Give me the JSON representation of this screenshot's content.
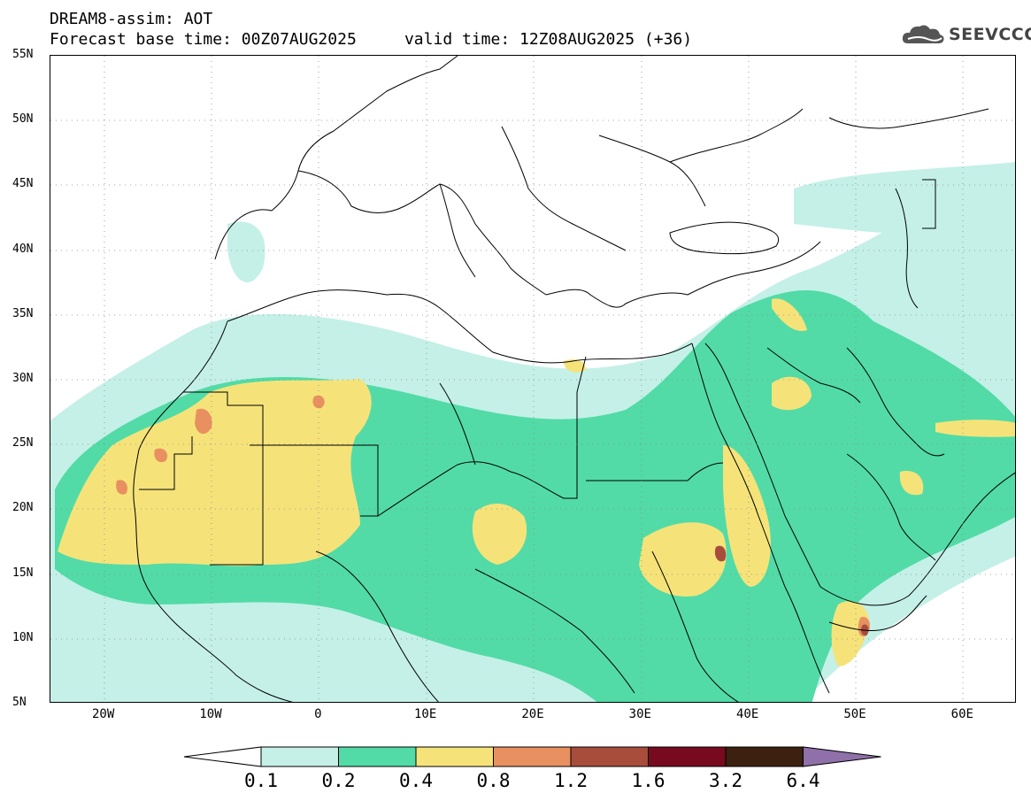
{
  "header": {
    "line1": "DREAM8-assim: AOT",
    "line2": "Forecast base time: 00Z07AUG2025     valid time: 12Z08AUG2025 (+36)"
  },
  "logo": {
    "text": "SEEVCCC",
    "icon": "cloud-icon"
  },
  "map": {
    "lon_range": [
      -25,
      65
    ],
    "lat_range": [
      5,
      55
    ],
    "lat_ticks": [
      {
        "value": 55,
        "label": "55N"
      },
      {
        "value": 50,
        "label": "50N"
      },
      {
        "value": 45,
        "label": "45N"
      },
      {
        "value": 40,
        "label": "40N"
      },
      {
        "value": 35,
        "label": "35N"
      },
      {
        "value": 30,
        "label": "30N"
      },
      {
        "value": 25,
        "label": "25N"
      },
      {
        "value": 20,
        "label": "20N"
      },
      {
        "value": 15,
        "label": "15N"
      },
      {
        "value": 10,
        "label": "10N"
      },
      {
        "value": 5,
        "label": "5N"
      }
    ],
    "lon_ticks": [
      {
        "value": -20,
        "label": "20W"
      },
      {
        "value": -10,
        "label": "10W"
      },
      {
        "value": 0,
        "label": "0"
      },
      {
        "value": 10,
        "label": "10E"
      },
      {
        "value": 20,
        "label": "20E"
      },
      {
        "value": 30,
        "label": "30E"
      },
      {
        "value": 40,
        "label": "40E"
      },
      {
        "value": 50,
        "label": "50E"
      },
      {
        "value": 60,
        "label": "60E"
      }
    ],
    "grid": true
  },
  "colorbar": {
    "labels": [
      "0.1",
      "0.2",
      "0.4",
      "0.8",
      "1.2",
      "1.6",
      "3.2",
      "6.4"
    ],
    "low_color": "#ffffff",
    "colors": [
      "#c4f0e8",
      "#52dba6",
      "#f5e37a",
      "#e89060",
      "#a84c3c",
      "#780a20",
      "#3c2010"
    ],
    "high_color": "#9070a8"
  }
}
